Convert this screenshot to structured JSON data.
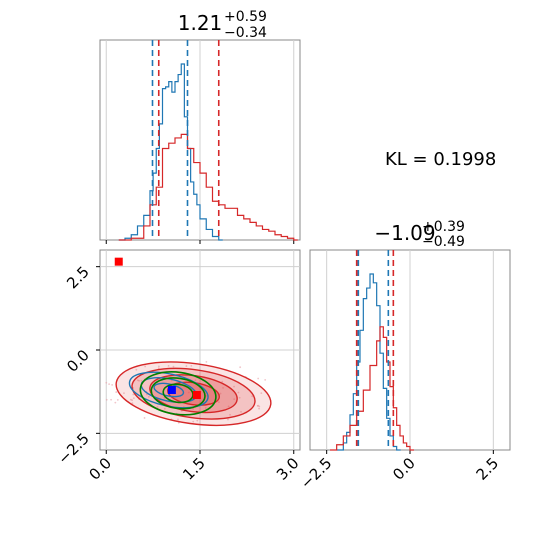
{
  "chart_data": [
    {
      "type": "histogram",
      "panel": "marginal-param-1",
      "title": {
        "value": "1.21",
        "plus": "+0.59",
        "minus": "−0.34"
      },
      "xlim": [
        -0.1,
        3.1
      ],
      "grid": true,
      "series": [
        {
          "name": "",
          "color": "#1f77b4",
          "x": [
            0.2,
            0.3,
            0.4,
            0.5,
            0.6,
            0.7,
            0.75,
            0.8,
            0.85,
            0.9,
            0.95,
            1.0,
            1.05,
            1.1,
            1.15,
            1.2,
            1.25,
            1.3,
            1.35,
            1.4,
            1.45,
            1.5,
            1.6,
            1.7,
            1.8
          ],
          "density": [
            0.0,
            0.01,
            0.03,
            0.08,
            0.14,
            0.28,
            0.38,
            0.52,
            0.66,
            0.86,
            0.87,
            0.9,
            0.84,
            0.9,
            0.94,
            1.0,
            0.7,
            0.52,
            0.33,
            0.26,
            0.2,
            0.12,
            0.06,
            0.02,
            0.0
          ]
        },
        {
          "name": "",
          "color": "#d62728",
          "x": [
            0.2,
            0.4,
            0.6,
            0.7,
            0.8,
            0.9,
            1.0,
            1.1,
            1.2,
            1.3,
            1.4,
            1.5,
            1.6,
            1.7,
            1.8,
            1.9,
            2.0,
            2.1,
            2.2,
            2.3,
            2.4,
            2.5,
            2.6,
            2.7,
            2.8,
            2.9,
            3.0
          ],
          "density": [
            0.0,
            0.01,
            0.08,
            0.2,
            0.3,
            0.52,
            0.55,
            0.58,
            0.6,
            0.52,
            0.44,
            0.38,
            0.3,
            0.22,
            0.2,
            0.18,
            0.18,
            0.14,
            0.12,
            0.1,
            0.08,
            0.06,
            0.05,
            0.03,
            0.02,
            0.01,
            0.0
          ]
        }
      ],
      "quantile_lines": {
        "blue": [
          0.74,
          1.3
        ],
        "red": [
          0.84,
          1.8
        ]
      }
    },
    {
      "type": "contour",
      "panel": "joint",
      "xlim": [
        -0.1,
        3.1
      ],
      "ylim": [
        -3.0,
        3.0
      ],
      "xticks": [
        "0.0",
        "1.5",
        "3.0"
      ],
      "yticks": [
        "2.5",
        "0.0",
        "−2.5"
      ],
      "grid": true,
      "red_contour_center": [
        1.3,
        -1.25
      ],
      "blue_contour_center": [
        1.0,
        -1.2
      ],
      "green_contour_center": [
        1.15,
        -1.3
      ],
      "markers": [
        {
          "color": "#ff0000",
          "shape": "square",
          "x": 0.2,
          "y": 2.65
        },
        {
          "color": "#ff0000",
          "shape": "square",
          "x": 1.45,
          "y": -1.35
        },
        {
          "color": "#0000ff",
          "shape": "square",
          "x": 1.05,
          "y": -1.2
        }
      ]
    },
    {
      "type": "histogram",
      "panel": "marginal-param-2",
      "title": {
        "value": "−1.09",
        "plus": "+0.39",
        "minus": "−0.49"
      },
      "xlim": [
        -3.0,
        3.0
      ],
      "xticks": [
        "−2.5",
        "0.0",
        "2.5"
      ],
      "grid": true,
      "series": [
        {
          "name": "",
          "color": "#1f77b4",
          "x": [
            -2.2,
            -2.0,
            -1.9,
            -1.8,
            -1.7,
            -1.6,
            -1.5,
            -1.4,
            -1.3,
            -1.2,
            -1.1,
            -1.0,
            -0.9,
            -0.8,
            -0.7,
            -0.6,
            -0.5,
            -0.4
          ],
          "density": [
            0.0,
            0.04,
            0.1,
            0.2,
            0.32,
            0.5,
            0.68,
            0.86,
            0.92,
            1.0,
            0.95,
            0.82,
            0.55,
            0.35,
            0.18,
            0.08,
            0.02,
            0.0
          ]
        },
        {
          "name": "",
          "color": "#d62728",
          "x": [
            -2.4,
            -2.2,
            -2.0,
            -1.8,
            -1.6,
            -1.4,
            -1.2,
            -1.0,
            -0.9,
            -0.8,
            -0.7,
            -0.6,
            -0.5,
            -0.4,
            -0.3,
            -0.2,
            -0.1,
            0.0
          ],
          "density": [
            0.0,
            0.03,
            0.08,
            0.14,
            0.22,
            0.34,
            0.48,
            0.62,
            0.7,
            0.64,
            0.5,
            0.36,
            0.24,
            0.14,
            0.08,
            0.04,
            0.02,
            0.0
          ]
        }
      ],
      "quantile_lines": {
        "blue": [
          -1.55,
          -0.65
        ],
        "red": [
          -1.6,
          -0.5
        ]
      }
    }
  ],
  "annotation": {
    "kl_text": "KL = 0.1998"
  }
}
